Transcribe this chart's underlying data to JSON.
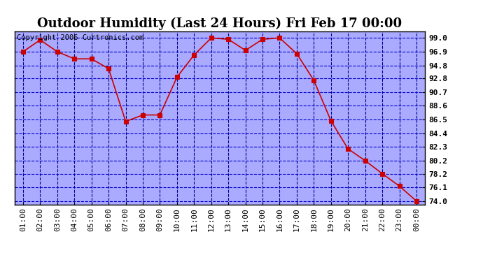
{
  "title": "Outdoor Humidity (Last 24 Hours) Fri Feb 17 00:00",
  "copyright_text": "Copyright 2006 Curtronics.com",
  "outer_bg_color": "#ffffff",
  "plot_bg_color": "#aaaaff",
  "line_color": "#cc0000",
  "marker_color": "#cc0000",
  "grid_color_h": "#0000cc",
  "grid_color_v": "#000088",
  "x_labels": [
    "01:00",
    "02:00",
    "03:00",
    "04:00",
    "05:00",
    "06:00",
    "07:00",
    "08:00",
    "09:00",
    "10:00",
    "11:00",
    "12:00",
    "13:00",
    "14:00",
    "15:00",
    "16:00",
    "17:00",
    "18:00",
    "19:00",
    "20:00",
    "21:00",
    "22:00",
    "23:00",
    "00:00"
  ],
  "x_values": [
    1,
    2,
    3,
    4,
    5,
    6,
    7,
    8,
    9,
    10,
    11,
    12,
    13,
    14,
    15,
    16,
    17,
    18,
    19,
    20,
    21,
    22,
    23,
    24
  ],
  "y_values": [
    96.9,
    98.7,
    96.9,
    95.8,
    95.8,
    94.3,
    86.2,
    87.2,
    87.2,
    93.0,
    96.4,
    99.0,
    98.8,
    97.1,
    98.8,
    99.0,
    96.6,
    92.5,
    86.3,
    82.0,
    80.2,
    78.2,
    76.3,
    74.0
  ],
  "y_tick_labels": [
    "99.0",
    "96.9",
    "94.8",
    "92.8",
    "90.7",
    "88.6",
    "86.5",
    "84.4",
    "82.3",
    "80.2",
    "78.2",
    "76.1",
    "74.0"
  ],
  "y_tick_values": [
    99.0,
    96.9,
    94.8,
    92.8,
    90.7,
    88.6,
    86.5,
    84.4,
    82.3,
    80.2,
    78.2,
    76.1,
    74.0
  ],
  "ylim": [
    73.5,
    100.0
  ],
  "xlim": [
    0.5,
    24.5
  ],
  "title_fontsize": 13,
  "copyright_fontsize": 7.5,
  "tick_fontsize": 8,
  "marker_size": 4
}
